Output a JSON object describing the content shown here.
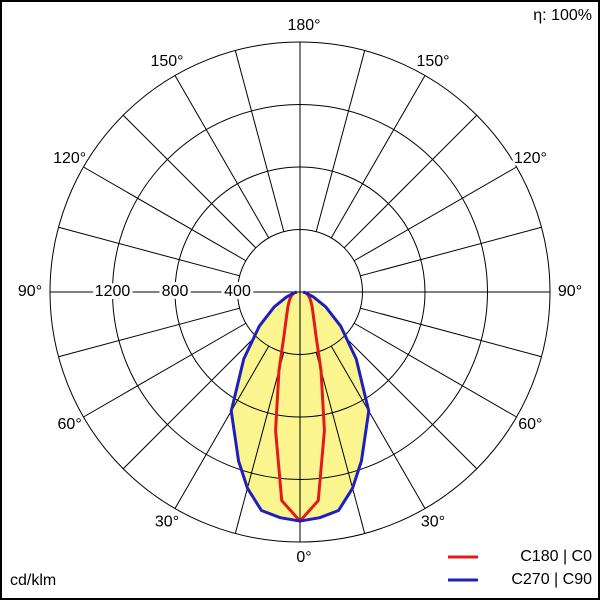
{
  "chart_data": {
    "type": "polar",
    "annotation": "η: 100%",
    "unit_label": "cd/klm",
    "angles": [
      0,
      5,
      10,
      15,
      20,
      30,
      40,
      50,
      60,
      70,
      80,
      90
    ],
    "series": [
      {
        "name": "C180 | C0",
        "color": "#e31a1c",
        "values": [
          1466,
          1340,
          900,
          520,
          300,
          170,
          120,
          90,
          70,
          55,
          40,
          20
        ]
      },
      {
        "name": "C270 | C90",
        "color": "#1f1fbf",
        "values": [
          1466,
          1450,
          1420,
          1300,
          1150,
          880,
          560,
          340,
          190,
          90,
          40,
          20
        ]
      }
    ],
    "fill_color": "#fbf58f",
    "rlim": [
      0,
      1600
    ],
    "rticks": [
      400,
      800,
      1200
    ],
    "angle_grid": [
      0,
      15,
      30,
      45,
      60,
      75,
      90,
      105,
      120,
      135,
      150,
      165,
      180
    ],
    "angle_ticks": [
      {
        "value": 0,
        "label": "0°"
      },
      {
        "value": 30,
        "label": "30°"
      },
      {
        "value": 60,
        "label": "60°"
      },
      {
        "value": 90,
        "label": "90°"
      },
      {
        "value": 120,
        "label": "120°"
      },
      {
        "value": 150,
        "label": "150°"
      },
      {
        "value": 180,
        "label": "180°"
      }
    ]
  }
}
